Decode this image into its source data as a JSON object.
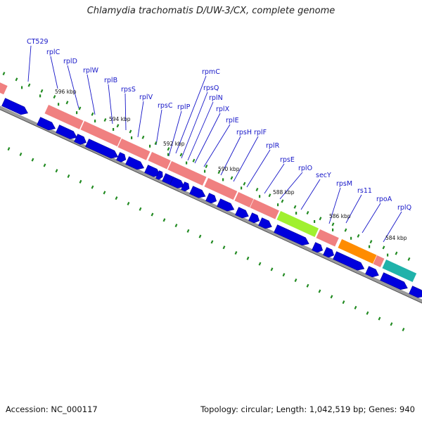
{
  "title": "Chlamydia trachomatis D/UW-3/CX, complete genome",
  "accession": "Accession: NC_000117",
  "summary": "Topology: circular; Length: 1,042,519 bp; Genes: 940",
  "colors": {
    "label": "#1515c8",
    "reverse_strand_gene": "#0000dd",
    "ribosomal_gene": "#f08080",
    "secY": "#a0f030",
    "rpoA": "#ff8c00",
    "rplQ": "#20b2aa",
    "gc_ticks": "#228b22",
    "backbone": "#888888"
  },
  "gene_labels": [
    "CT529",
    "rplC",
    "rplD",
    "rplW",
    "rplB",
    "rpsS",
    "rplV",
    "rpsC",
    "rplP",
    "rpmC",
    "rpsQ",
    "rplN",
    "rplX",
    "rplE",
    "rpsH",
    "rplF",
    "rplR",
    "rpsE",
    "rplO",
    "secY",
    "rpsM",
    "rs11",
    "rpoA",
    "rplQ"
  ],
  "kbp_ticks": [
    "596 kbp",
    "594 kbp",
    "592 kbp",
    "590 kbp",
    "588 kbp",
    "586 kbp",
    "584 kbp"
  ],
  "icons": [
    "gene-block",
    "gene-arrow",
    "gc-skew-tick"
  ]
}
